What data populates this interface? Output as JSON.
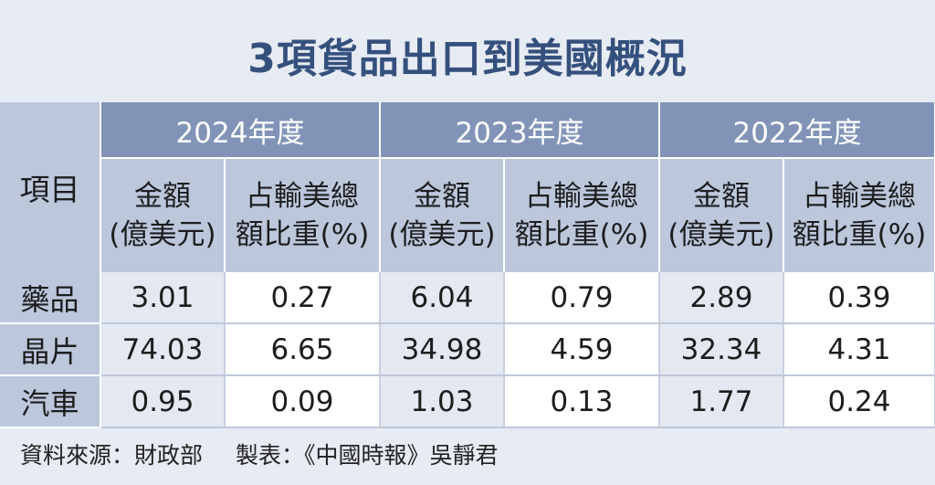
{
  "title": "3項貨品出口到美國概況",
  "table": {
    "item_header": "項目",
    "years": [
      "2024年度",
      "2023年度",
      "2022年度"
    ],
    "amount_header": [
      "金額",
      "(億美元)"
    ],
    "share_header": [
      "占輸美總",
      "額比重(%)"
    ],
    "rows": [
      {
        "label": "藥品",
        "values": [
          "3.01",
          "0.27",
          "6.04",
          "0.79",
          "2.89",
          "0.39"
        ]
      },
      {
        "label": "晶片",
        "values": [
          "74.03",
          "6.65",
          "34.98",
          "4.59",
          "32.34",
          "4.31"
        ]
      },
      {
        "label": "汽車",
        "values": [
          "0.95",
          "0.09",
          "1.03",
          "0.13",
          "1.77",
          "0.24"
        ]
      }
    ]
  },
  "footer": {
    "source": "資料來源：財政部",
    "credit": "製表：《中國時報》吳靜君"
  }
}
